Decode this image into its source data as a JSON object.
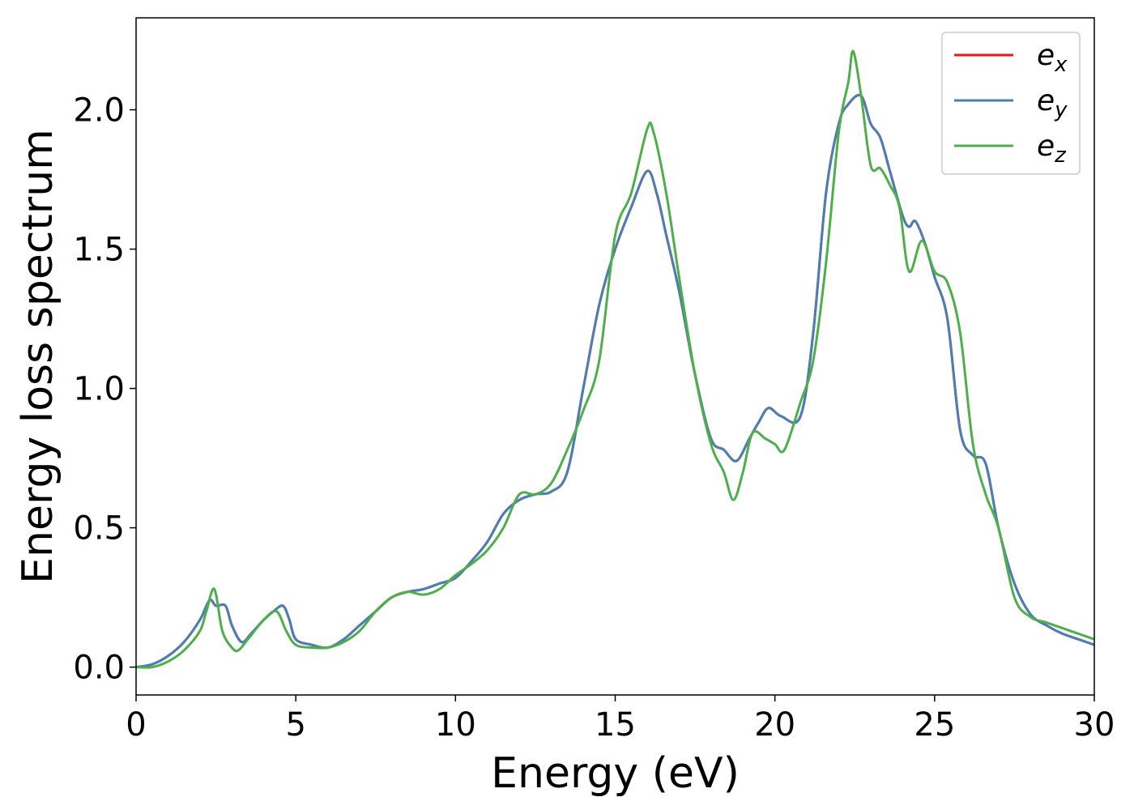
{
  "chart_data": {
    "type": "line",
    "xlabel": "Energy (eV)",
    "ylabel": "Energy loss spectrum",
    "xlim": [
      0,
      30
    ],
    "ylim": [
      -0.1,
      2.33
    ],
    "xticks": [
      "0",
      "5",
      "10",
      "15",
      "20",
      "25",
      "30"
    ],
    "xtick_values": [
      0,
      5,
      10,
      15,
      20,
      25,
      30
    ],
    "yticks": [
      "0.0",
      "0.5",
      "1.0",
      "1.5",
      "2.0"
    ],
    "ytick_values": [
      0,
      0.5,
      1.0,
      1.5,
      2.0
    ],
    "grid": false,
    "legend": {
      "placement": "top-right"
    },
    "series": [
      {
        "name": "e_x",
        "legend_base": "e",
        "legend_sub": "x",
        "color": "#e41a1c",
        "x": [
          0,
          0.5,
          1.0,
          1.5,
          2.0,
          2.3,
          2.5,
          2.8,
          3.0,
          3.3,
          3.6,
          4.0,
          4.3,
          4.6,
          4.8,
          5.0,
          5.5,
          6.0,
          6.5,
          7.0,
          7.5,
          8.0,
          8.5,
          9.0,
          9.5,
          10.0,
          10.5,
          11.0,
          11.5,
          12.0,
          12.5,
          13.0,
          13.5,
          14.0,
          14.5,
          15.0,
          15.5,
          16.0,
          16.3,
          16.6,
          17.0,
          17.5,
          18.0,
          18.4,
          18.8,
          19.2,
          19.5,
          19.8,
          20.2,
          20.8,
          21.2,
          21.6,
          22.0,
          22.3,
          22.7,
          23.0,
          23.3,
          23.6,
          24.0,
          24.2,
          24.4,
          24.7,
          25.0,
          25.4,
          25.8,
          26.2,
          26.6,
          27.0,
          27.5,
          28.0,
          28.5,
          29.0,
          29.5,
          30.0
        ],
        "y": [
          0.0,
          0.01,
          0.04,
          0.09,
          0.17,
          0.24,
          0.22,
          0.22,
          0.15,
          0.09,
          0.12,
          0.17,
          0.2,
          0.22,
          0.17,
          0.1,
          0.08,
          0.07,
          0.1,
          0.15,
          0.2,
          0.25,
          0.27,
          0.28,
          0.3,
          0.32,
          0.38,
          0.45,
          0.55,
          0.6,
          0.62,
          0.63,
          0.7,
          1.0,
          1.3,
          1.5,
          1.65,
          1.78,
          1.7,
          1.55,
          1.35,
          1.05,
          0.82,
          0.78,
          0.74,
          0.82,
          0.88,
          0.93,
          0.9,
          0.9,
          1.2,
          1.7,
          1.95,
          2.02,
          2.05,
          1.95,
          1.9,
          1.78,
          1.62,
          1.58,
          1.6,
          1.52,
          1.4,
          1.25,
          0.85,
          0.76,
          0.73,
          0.5,
          0.3,
          0.19,
          0.15,
          0.12,
          0.1,
          0.08
        ]
      },
      {
        "name": "e_y",
        "legend_base": "e",
        "legend_sub": "y",
        "color": "#4a7fb5",
        "x": [
          0,
          0.5,
          1.0,
          1.5,
          2.0,
          2.3,
          2.5,
          2.8,
          3.0,
          3.3,
          3.6,
          4.0,
          4.3,
          4.6,
          4.8,
          5.0,
          5.5,
          6.0,
          6.5,
          7.0,
          7.5,
          8.0,
          8.5,
          9.0,
          9.5,
          10.0,
          10.5,
          11.0,
          11.5,
          12.0,
          12.5,
          13.0,
          13.5,
          14.0,
          14.5,
          15.0,
          15.5,
          16.0,
          16.3,
          16.6,
          17.0,
          17.5,
          18.0,
          18.4,
          18.8,
          19.2,
          19.5,
          19.8,
          20.2,
          20.8,
          21.2,
          21.6,
          22.0,
          22.3,
          22.7,
          23.0,
          23.3,
          23.6,
          24.0,
          24.2,
          24.4,
          24.7,
          25.0,
          25.4,
          25.8,
          26.2,
          26.6,
          27.0,
          27.5,
          28.0,
          28.5,
          29.0,
          29.5,
          30.0
        ],
        "y": [
          0.0,
          0.01,
          0.04,
          0.09,
          0.17,
          0.24,
          0.22,
          0.22,
          0.15,
          0.09,
          0.12,
          0.17,
          0.2,
          0.22,
          0.17,
          0.1,
          0.08,
          0.07,
          0.1,
          0.15,
          0.2,
          0.25,
          0.27,
          0.28,
          0.3,
          0.32,
          0.38,
          0.45,
          0.55,
          0.6,
          0.62,
          0.63,
          0.7,
          1.0,
          1.3,
          1.5,
          1.65,
          1.78,
          1.7,
          1.55,
          1.35,
          1.05,
          0.82,
          0.78,
          0.74,
          0.82,
          0.88,
          0.93,
          0.9,
          0.9,
          1.2,
          1.7,
          1.95,
          2.02,
          2.05,
          1.95,
          1.9,
          1.78,
          1.62,
          1.58,
          1.6,
          1.52,
          1.4,
          1.25,
          0.85,
          0.76,
          0.73,
          0.5,
          0.3,
          0.19,
          0.15,
          0.12,
          0.1,
          0.08
        ]
      },
      {
        "name": "e_z",
        "legend_base": "e",
        "legend_sub": "z",
        "color": "#4daf4a",
        "x": [
          0,
          0.5,
          1.0,
          1.5,
          2.0,
          2.2,
          2.45,
          2.7,
          3.0,
          3.2,
          3.5,
          4.0,
          4.4,
          4.7,
          5.0,
          5.5,
          6.0,
          6.5,
          7.0,
          7.5,
          8.0,
          8.5,
          9.0,
          9.5,
          10.0,
          10.5,
          11.0,
          11.5,
          12.0,
          12.5,
          13.0,
          13.5,
          14.0,
          14.5,
          15.0,
          15.5,
          16.0,
          16.2,
          16.6,
          17.0,
          17.5,
          18.0,
          18.4,
          18.7,
          19.0,
          19.3,
          19.7,
          20.0,
          20.3,
          20.8,
          21.2,
          21.6,
          22.0,
          22.3,
          22.45,
          22.7,
          23.0,
          23.3,
          23.6,
          23.9,
          24.2,
          24.6,
          25.0,
          25.4,
          25.8,
          26.2,
          26.6,
          27.0,
          27.5,
          28.0,
          28.5,
          29.0,
          29.5,
          30.0
        ],
        "y": [
          0.0,
          0.0,
          0.02,
          0.06,
          0.13,
          0.2,
          0.28,
          0.13,
          0.07,
          0.06,
          0.1,
          0.17,
          0.2,
          0.13,
          0.08,
          0.07,
          0.07,
          0.09,
          0.13,
          0.2,
          0.25,
          0.27,
          0.26,
          0.28,
          0.33,
          0.37,
          0.42,
          0.5,
          0.62,
          0.62,
          0.66,
          0.78,
          0.92,
          1.1,
          1.55,
          1.7,
          1.93,
          1.92,
          1.7,
          1.4,
          1.05,
          0.8,
          0.7,
          0.6,
          0.7,
          0.84,
          0.82,
          0.8,
          0.78,
          0.95,
          1.1,
          1.45,
          1.92,
          2.1,
          2.21,
          2.05,
          1.8,
          1.79,
          1.73,
          1.65,
          1.42,
          1.53,
          1.42,
          1.38,
          1.2,
          0.8,
          0.62,
          0.5,
          0.25,
          0.18,
          0.16,
          0.14,
          0.12,
          0.1
        ]
      }
    ]
  }
}
